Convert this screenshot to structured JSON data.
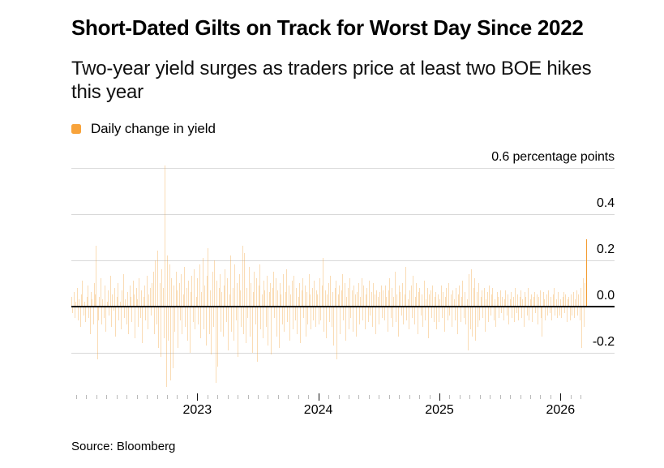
{
  "header": {
    "title": "Short-Dated Gilts on Track for Worst Day Since 2022",
    "subtitle_line1": "Two-year yield surges as traders price at least two BOE hikes",
    "subtitle_line2": "this year"
  },
  "legend": {
    "label": "Daily change in yield",
    "swatch_color": "#F8A33B"
  },
  "source": {
    "text": "Source: Bloomberg"
  },
  "chart_data": {
    "type": "bar",
    "title": "Short-Dated Gilts on Track for Worst Day Since 2022",
    "series_name": "Daily change in yield",
    "ylabel": "percentage points",
    "y_axis": {
      "top_label": "0.6 percentage points",
      "tick_labels": [
        "0.4",
        "0.2",
        "0.0",
        "-0.2"
      ],
      "tick_values": [
        0.4,
        0.2,
        0.0,
        -0.2
      ],
      "gridline_values": [
        0.6,
        0.4,
        0.2,
        0.0,
        -0.2
      ],
      "ylim": [
        -0.38,
        0.62
      ]
    },
    "x_axis": {
      "year_ticks": [
        "2023",
        "2024",
        "2025",
        "2026"
      ],
      "axis_start_year": 2021.96,
      "data_end_year": 2026.21,
      "month_tick_start": 2022.0,
      "month_tick_end": 2026.17
    },
    "colors": {
      "bar": "#F2A23C",
      "bar_alpha": 0.38,
      "bar_highlight": "#F49D33",
      "gridline": "#d9d9d9",
      "zero_line": "#000000",
      "minor_tick": "#b9b9b9",
      "year_tick": "#111111"
    },
    "highlight_last_bar": true,
    "values": [
      0.04,
      -0.03,
      0.06,
      -0.05,
      0.02,
      0.08,
      -0.06,
      0.03,
      -0.09,
      0.05,
      0.11,
      -0.04,
      0.02,
      -0.07,
      0.04,
      0.09,
      -0.05,
      -0.12,
      0.06,
      0.03,
      -0.08,
      0.1,
      0.05,
      0.26,
      -0.23,
      -0.06,
      0.04,
      0.12,
      -0.08,
      0.03,
      -0.05,
      0.09,
      -0.11,
      0.02,
      0.07,
      -0.04,
      0.13,
      -0.09,
      0.05,
      -0.02,
      0.08,
      -0.13,
      0.04,
      0.1,
      -0.06,
      0.02,
      -0.1,
      0.07,
      0.14,
      -0.05,
      0.03,
      -0.08,
      0.06,
      -0.12,
      0.09,
      0.04,
      -0.07,
      0.11,
      0.05,
      -0.14,
      0.08,
      0.03,
      -0.09,
      0.12,
      -0.05,
      0.07,
      -0.16,
      0.04,
      0.09,
      -0.06,
      0.13,
      -0.1,
      0.05,
      0.08,
      -0.04,
      0.1,
      0.15,
      -0.12,
      0.2,
      -0.08,
      0.24,
      -0.18,
      0.1,
      -0.22,
      0.16,
      0.08,
      -0.14,
      0.61,
      -0.35,
      0.22,
      -0.15,
      0.18,
      -0.32,
      0.12,
      -0.27,
      0.09,
      -0.11,
      0.15,
      0.07,
      -0.18,
      0.1,
      -0.06,
      0.14,
      -0.12,
      0.05,
      0.17,
      -0.09,
      0.08,
      -0.15,
      0.11,
      -0.2,
      0.06,
      0.13,
      -0.07,
      0.16,
      -0.1,
      0.04,
      0.12,
      -0.08,
      0.18,
      -0.14,
      0.06,
      0.21,
      -0.1,
      0.09,
      -0.17,
      0.13,
      0.25,
      -0.12,
      0.07,
      -0.21,
      0.15,
      -0.09,
      0.2,
      -0.33,
      0.11,
      -0.26,
      0.08,
      0.14,
      -0.11,
      0.06,
      -0.13,
      0.09,
      0.16,
      -0.07,
      0.12,
      -0.19,
      0.05,
      0.22,
      -0.11,
      0.08,
      -0.15,
      0.18,
      -0.06,
      0.1,
      -0.22,
      0.14,
      0.07,
      -0.09,
      0.26,
      -0.12,
      0.23,
      -0.16,
      0.08,
      -0.05,
      0.17,
      -0.13,
      0.1,
      -0.2,
      0.06,
      0.15,
      -0.08,
      0.12,
      -0.24,
      0.09,
      0.18,
      -0.1,
      0.05,
      -0.14,
      0.11,
      0.07,
      -0.09,
      0.13,
      -0.17,
      0.06,
      0.1,
      -0.21,
      0.08,
      0.15,
      -0.05,
      0.12,
      -0.13,
      0.07,
      -0.18,
      0.1,
      0.05,
      -0.08,
      0.14,
      -0.11,
      0.06,
      0.16,
      -0.07,
      0.09,
      -0.15,
      0.05,
      0.11,
      -0.1,
      0.13,
      -0.06,
      0.08,
      -0.12,
      0.04,
      0.1,
      -0.16,
      0.07,
      0.12,
      -0.05,
      0.09,
      -0.13,
      0.06,
      -0.08,
      0.14,
      0.05,
      -0.1,
      0.08,
      -0.06,
      0.11,
      -0.09,
      0.07,
      0.05,
      -0.08,
      0.12,
      -0.06,
      0.09,
      0.21,
      -0.11,
      0.07,
      -0.14,
      0.05,
      0.1,
      -0.07,
      0.13,
      -0.09,
      0.06,
      -0.17,
      0.08,
      0.11,
      -0.23,
      0.05,
      0.09,
      -0.12,
      0.07,
      0.14,
      -0.06,
      0.1,
      -0.15,
      0.04,
      0.08,
      -0.1,
      0.12,
      -0.05,
      0.07,
      -0.11,
      0.09,
      0.05,
      -0.13,
      0.06,
      0.1,
      -0.08,
      0.04,
      0.12,
      -0.06,
      0.09,
      -0.1,
      0.05,
      0.08,
      -0.07,
      0.11,
      -0.04,
      0.06,
      -0.09,
      0.1,
      0.05,
      -0.12,
      0.07,
      0.04,
      -0.08,
      0.06,
      0.09,
      -0.05,
      0.07,
      -0.06,
      0.09,
      0.04,
      -0.11,
      0.07,
      0.12,
      -0.05,
      0.08,
      -0.09,
      0.04,
      0.15,
      -0.07,
      0.05,
      -0.13,
      0.09,
      0.06,
      -0.04,
      0.1,
      -0.08,
      0.05,
      0.17,
      -0.06,
      0.03,
      -0.1,
      0.07,
      0.09,
      -0.05,
      0.13,
      -0.08,
      0.04,
      0.1,
      -0.12,
      0.06,
      0.08,
      -0.04,
      0.05,
      -0.09,
      0.11,
      -0.06,
      0.03,
      0.08,
      -0.14,
      0.05,
      0.07,
      -0.05,
      0.09,
      -0.07,
      0.04,
      0.06,
      -0.1,
      0.05,
      -0.07,
      0.03,
      0.09,
      -0.05,
      0.06,
      -0.11,
      0.04,
      0.08,
      -0.06,
      0.1,
      -0.04,
      0.05,
      -0.09,
      0.07,
      0.03,
      -0.06,
      0.08,
      -0.12,
      0.05,
      0.09,
      -0.07,
      0.04,
      0.11,
      -0.05,
      0.06,
      -0.08,
      0.03,
      -0.19,
      0.14,
      -0.1,
      0.16,
      -0.13,
      0.08,
      0.12,
      -0.15,
      0.06,
      -0.09,
      0.1,
      -0.06,
      0.04,
      0.07,
      -0.05,
      0.08,
      -0.11,
      0.03,
      0.06,
      -0.07,
      0.09,
      -0.04,
      0.05,
      0.08,
      -0.06,
      0.03,
      -0.09,
      0.06,
      0.04,
      -0.05,
      0.07,
      -0.03,
      0.04,
      -0.06,
      0.03,
      0.07,
      -0.04,
      0.05,
      -0.08,
      0.03,
      0.06,
      -0.05,
      0.04,
      -0.07,
      0.08,
      -0.03,
      0.05,
      -0.06,
      0.04,
      0.07,
      -0.05,
      0.03,
      -0.09,
      0.06,
      0.04,
      -0.04,
      0.08,
      -0.06,
      0.03,
      0.05,
      -0.07,
      0.04,
      0.06,
      -0.03,
      0.05,
      -0.08,
      0.04,
      0.07,
      -0.05,
      -0.13,
      0.06,
      0.03,
      -0.06,
      0.05,
      -0.04,
      0.07,
      -0.03,
      0.04,
      -0.06,
      0.05,
      0.08,
      -0.04,
      0.03,
      -0.05,
      0.06,
      -0.04,
      0.03,
      -0.05,
      0.04,
      0.06,
      -0.03,
      0.05,
      -0.07,
      0.03,
      0.04,
      -0.06,
      0.05,
      -0.04,
      0.06,
      -0.05,
      0.03,
      0.07,
      -0.04,
      0.05,
      -0.06,
      0.08,
      -0.18,
      0.12,
      -0.09,
      0.1,
      0.29
    ]
  }
}
